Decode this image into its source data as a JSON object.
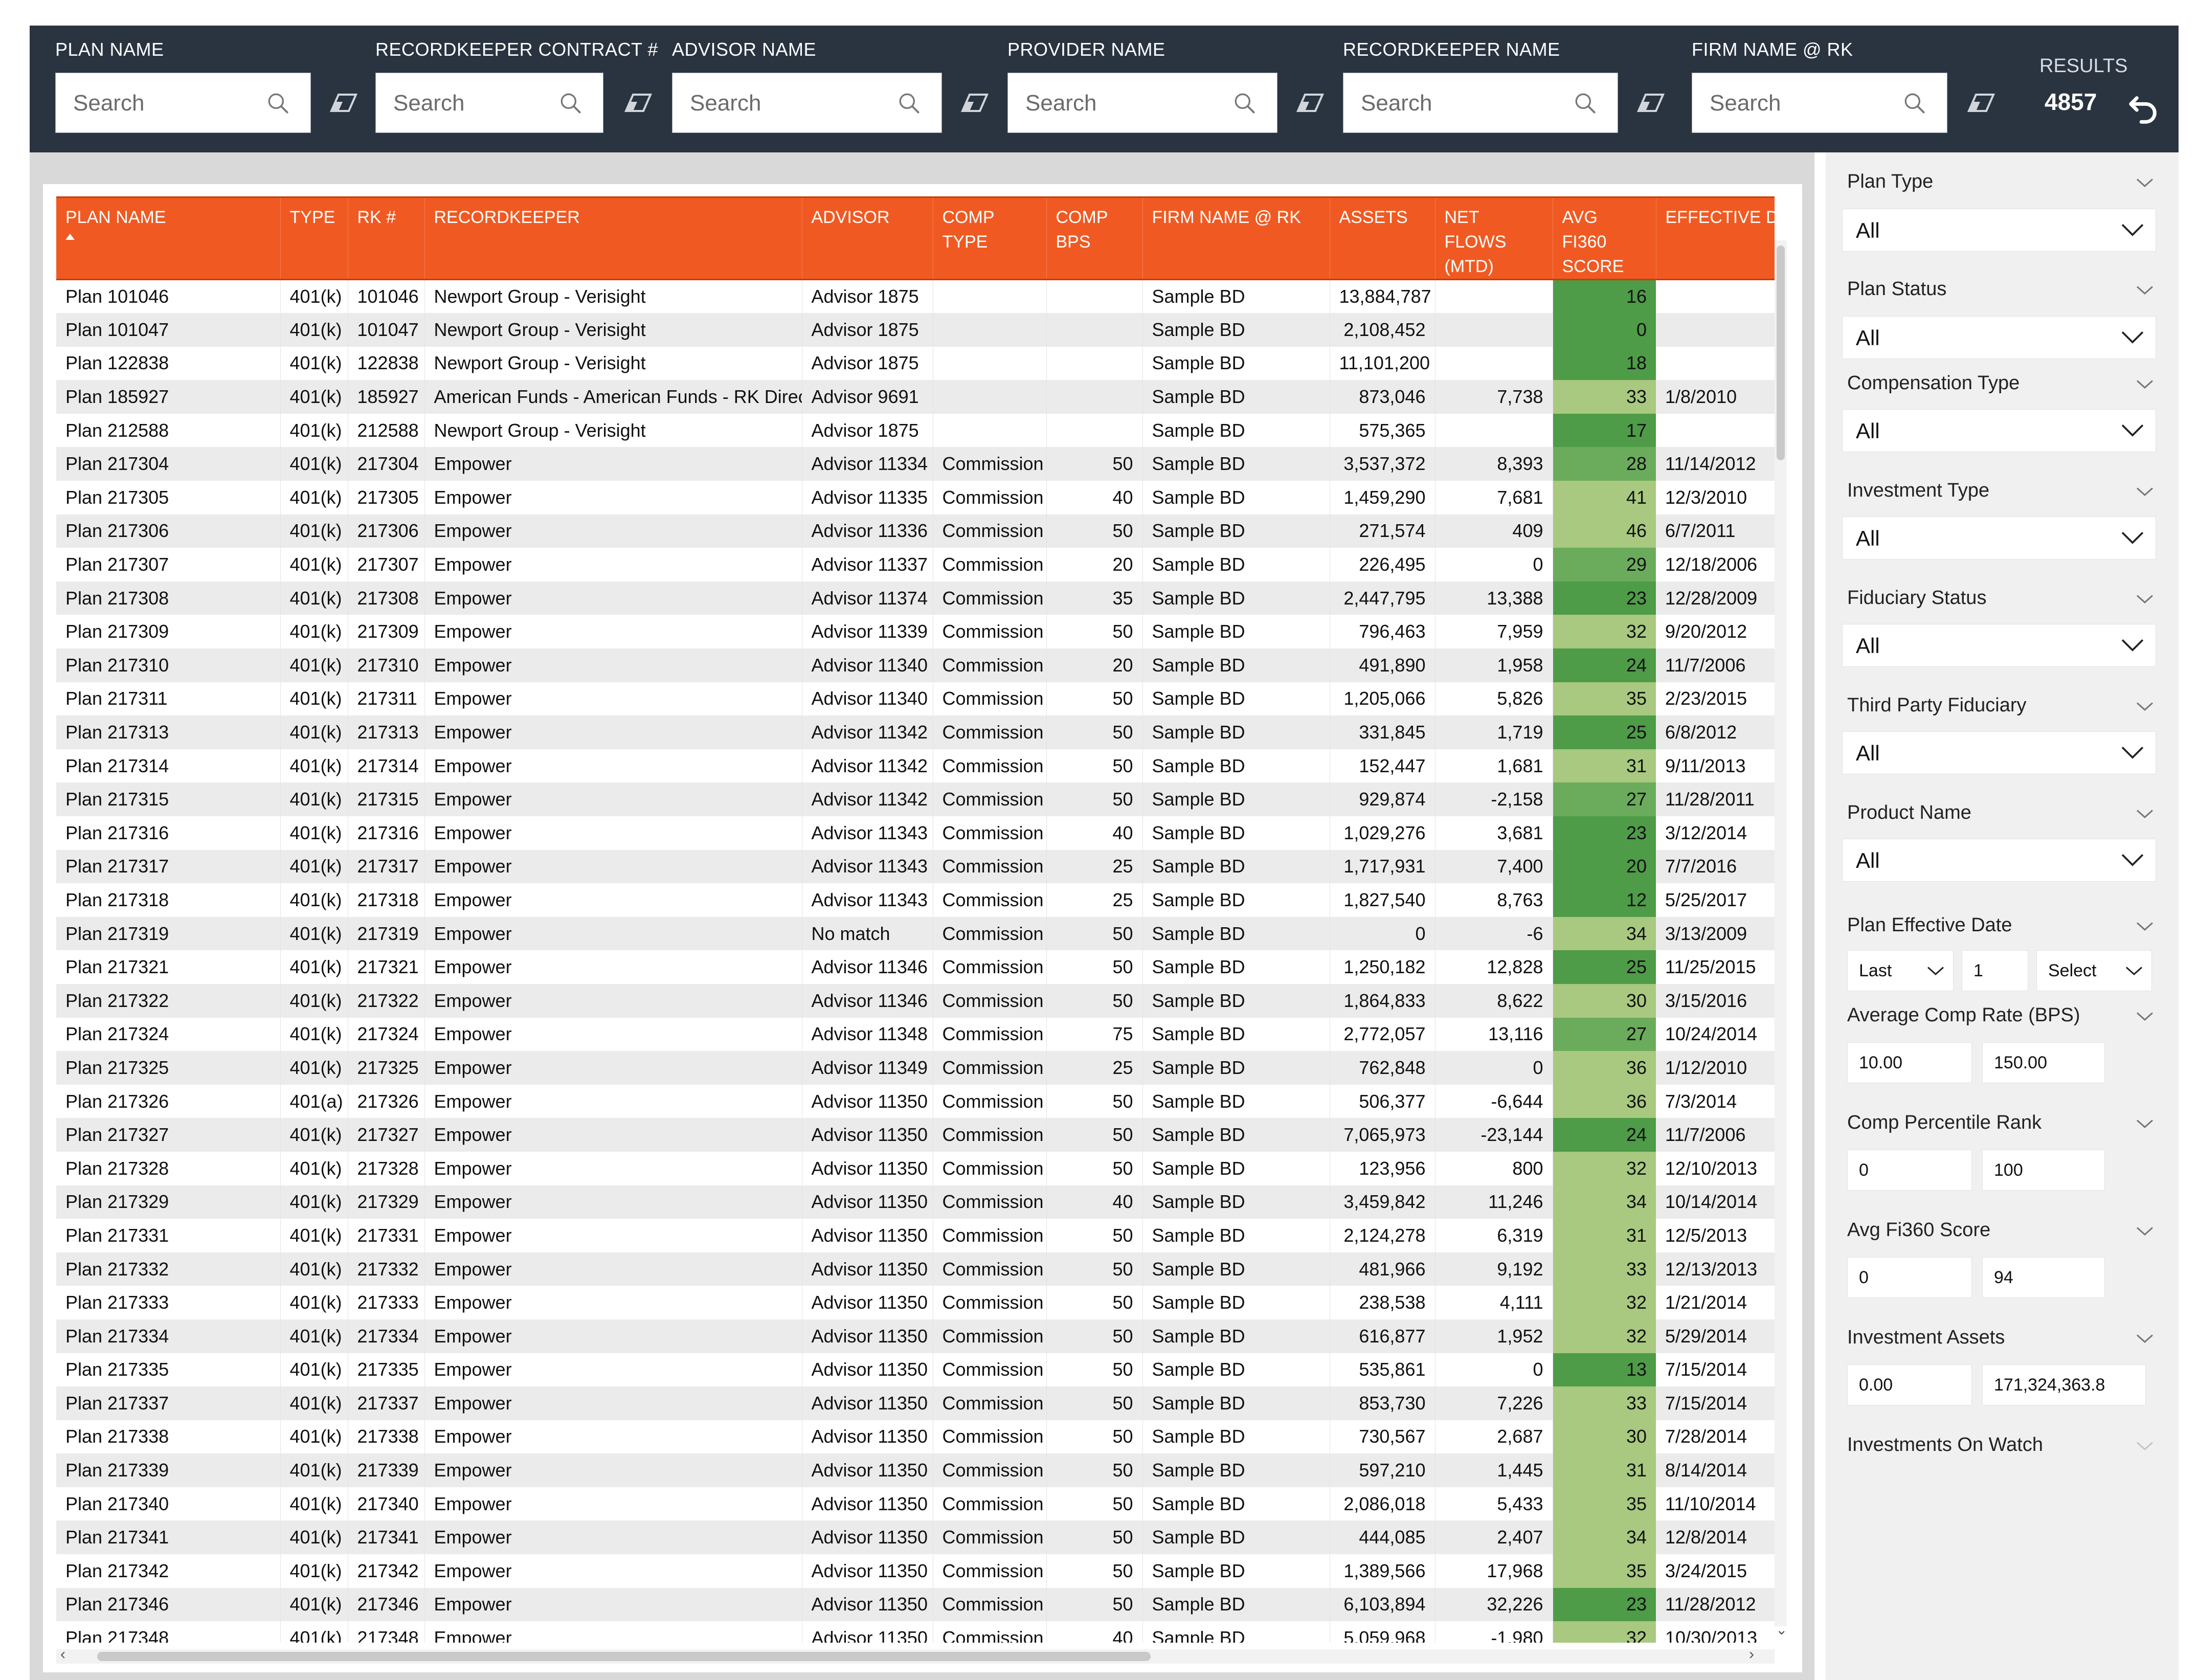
{
  "filters": [
    {
      "label": "PLAN NAME",
      "placeholder": "Search"
    },
    {
      "label": "RECORDKEEPER CONTRACT #",
      "placeholder": "Search"
    },
    {
      "label": "ADVISOR NAME",
      "placeholder": "Search"
    },
    {
      "label": "PROVIDER NAME",
      "placeholder": "Search"
    },
    {
      "label": "RECORDKEEPER NAME",
      "placeholder": "Search"
    },
    {
      "label": "FIRM NAME @ RK",
      "placeholder": "Search"
    }
  ],
  "results": {
    "label": "RESULTS",
    "value": "4857"
  },
  "table": {
    "columns": [
      {
        "label": "PLAN NAME"
      },
      {
        "label": "TYPE"
      },
      {
        "label": "RK #"
      },
      {
        "label": "RECORDKEEPER"
      },
      {
        "label": "ADVISOR"
      },
      {
        "label": "COMP TYPE"
      },
      {
        "label": "COMP BPS"
      },
      {
        "label": "FIRM NAME @ RK"
      },
      {
        "label": "ASSETS"
      },
      {
        "label": "NET FLOWS (MTD)"
      },
      {
        "label": "AVG FI360 SCORE"
      },
      {
        "label": "EFFECTIVE DATE"
      }
    ],
    "rows": [
      [
        "Plan 101046",
        "401(k)",
        "101046",
        "Newport Group - Verisight",
        "Advisor 1875",
        "",
        "",
        "Sample BD",
        "13,884,787",
        "",
        "16",
        ""
      ],
      [
        "Plan 101047",
        "401(k)",
        "101047",
        "Newport Group - Verisight",
        "Advisor 1875",
        "",
        "",
        "Sample BD",
        "2,108,452",
        "",
        "0",
        ""
      ],
      [
        "Plan 122838",
        "401(k)",
        "122838",
        "Newport Group - Verisight",
        "Advisor 1875",
        "",
        "",
        "Sample BD",
        "11,101,200",
        "",
        "18",
        ""
      ],
      [
        "Plan 185927",
        "401(k)",
        "185927",
        "American Funds - American Funds - RK Direct",
        "Advisor 9691",
        "",
        "",
        "Sample BD",
        "873,046",
        "7,738",
        "33",
        "1/8/2010"
      ],
      [
        "Plan 212588",
        "401(k)",
        "212588",
        "Newport Group - Verisight",
        "Advisor 1875",
        "",
        "",
        "Sample BD",
        "575,365",
        "",
        "17",
        ""
      ],
      [
        "Plan 217304",
        "401(k)",
        "217304",
        "Empower",
        "Advisor 11334",
        "Commission",
        "50",
        "Sample BD",
        "3,537,372",
        "8,393",
        "28",
        "11/14/2012"
      ],
      [
        "Plan 217305",
        "401(k)",
        "217305",
        "Empower",
        "Advisor 11335",
        "Commission",
        "40",
        "Sample BD",
        "1,459,290",
        "7,681",
        "41",
        "12/3/2010"
      ],
      [
        "Plan 217306",
        "401(k)",
        "217306",
        "Empower",
        "Advisor 11336",
        "Commission",
        "50",
        "Sample BD",
        "271,574",
        "409",
        "46",
        "6/7/2011"
      ],
      [
        "Plan 217307",
        "401(k)",
        "217307",
        "Empower",
        "Advisor 11337",
        "Commission",
        "20",
        "Sample BD",
        "226,495",
        "0",
        "29",
        "12/18/2006"
      ],
      [
        "Plan 217308",
        "401(k)",
        "217308",
        "Empower",
        "Advisor 11374",
        "Commission",
        "35",
        "Sample BD",
        "2,447,795",
        "13,388",
        "23",
        "12/28/2009"
      ],
      [
        "Plan 217309",
        "401(k)",
        "217309",
        "Empower",
        "Advisor 11339",
        "Commission",
        "50",
        "Sample BD",
        "796,463",
        "7,959",
        "32",
        "9/20/2012"
      ],
      [
        "Plan 217310",
        "401(k)",
        "217310",
        "Empower",
        "Advisor 11340",
        "Commission",
        "20",
        "Sample BD",
        "491,890",
        "1,958",
        "24",
        "11/7/2006"
      ],
      [
        "Plan 217311",
        "401(k)",
        "217311",
        "Empower",
        "Advisor 11340",
        "Commission",
        "50",
        "Sample BD",
        "1,205,066",
        "5,826",
        "35",
        "2/23/2015"
      ],
      [
        "Plan 217313",
        "401(k)",
        "217313",
        "Empower",
        "Advisor 11342",
        "Commission",
        "50",
        "Sample BD",
        "331,845",
        "1,719",
        "25",
        "6/8/2012"
      ],
      [
        "Plan 217314",
        "401(k)",
        "217314",
        "Empower",
        "Advisor 11342",
        "Commission",
        "50",
        "Sample BD",
        "152,447",
        "1,681",
        "31",
        "9/11/2013"
      ],
      [
        "Plan 217315",
        "401(k)",
        "217315",
        "Empower",
        "Advisor 11342",
        "Commission",
        "50",
        "Sample BD",
        "929,874",
        "-2,158",
        "27",
        "11/28/2011"
      ],
      [
        "Plan 217316",
        "401(k)",
        "217316",
        "Empower",
        "Advisor 11343",
        "Commission",
        "40",
        "Sample BD",
        "1,029,276",
        "3,681",
        "23",
        "3/12/2014"
      ],
      [
        "Plan 217317",
        "401(k)",
        "217317",
        "Empower",
        "Advisor 11343",
        "Commission",
        "25",
        "Sample BD",
        "1,717,931",
        "7,400",
        "20",
        "7/7/2016"
      ],
      [
        "Plan 217318",
        "401(k)",
        "217318",
        "Empower",
        "Advisor 11343",
        "Commission",
        "25",
        "Sample BD",
        "1,827,540",
        "8,763",
        "12",
        "5/25/2017"
      ],
      [
        "Plan 217319",
        "401(k)",
        "217319",
        "Empower",
        "No match",
        "Commission",
        "50",
        "Sample BD",
        "0",
        "-6",
        "34",
        "3/13/2009"
      ],
      [
        "Plan 217321",
        "401(k)",
        "217321",
        "Empower",
        "Advisor 11346",
        "Commission",
        "50",
        "Sample BD",
        "1,250,182",
        "12,828",
        "25",
        "11/25/2015"
      ],
      [
        "Plan 217322",
        "401(k)",
        "217322",
        "Empower",
        "Advisor 11346",
        "Commission",
        "50",
        "Sample BD",
        "1,864,833",
        "8,622",
        "30",
        "3/15/2016"
      ],
      [
        "Plan 217324",
        "401(k)",
        "217324",
        "Empower",
        "Advisor 11348",
        "Commission",
        "75",
        "Sample BD",
        "2,772,057",
        "13,116",
        "27",
        "10/24/2014"
      ],
      [
        "Plan 217325",
        "401(k)",
        "217325",
        "Empower",
        "Advisor 11349",
        "Commission",
        "25",
        "Sample BD",
        "762,848",
        "0",
        "36",
        "1/12/2010"
      ],
      [
        "Plan 217326",
        "401(a)",
        "217326",
        "Empower",
        "Advisor 11350",
        "Commission",
        "50",
        "Sample BD",
        "506,377",
        "-6,644",
        "36",
        "7/3/2014"
      ],
      [
        "Plan 217327",
        "401(k)",
        "217327",
        "Empower",
        "Advisor 11350",
        "Commission",
        "50",
        "Sample BD",
        "7,065,973",
        "-23,144",
        "24",
        "11/7/2006"
      ],
      [
        "Plan 217328",
        "401(k)",
        "217328",
        "Empower",
        "Advisor 11350",
        "Commission",
        "50",
        "Sample BD",
        "123,956",
        "800",
        "32",
        "12/10/2013"
      ],
      [
        "Plan 217329",
        "401(k)",
        "217329",
        "Empower",
        "Advisor 11350",
        "Commission",
        "40",
        "Sample BD",
        "3,459,842",
        "11,246",
        "34",
        "10/14/2014"
      ],
      [
        "Plan 217331",
        "401(k)",
        "217331",
        "Empower",
        "Advisor 11350",
        "Commission",
        "50",
        "Sample BD",
        "2,124,278",
        "6,319",
        "31",
        "12/5/2013"
      ],
      [
        "Plan 217332",
        "401(k)",
        "217332",
        "Empower",
        "Advisor 11350",
        "Commission",
        "50",
        "Sample BD",
        "481,966",
        "9,192",
        "33",
        "12/13/2013"
      ],
      [
        "Plan 217333",
        "401(k)",
        "217333",
        "Empower",
        "Advisor 11350",
        "Commission",
        "50",
        "Sample BD",
        "238,538",
        "4,111",
        "32",
        "1/21/2014"
      ],
      [
        "Plan 217334",
        "401(k)",
        "217334",
        "Empower",
        "Advisor 11350",
        "Commission",
        "50",
        "Sample BD",
        "616,877",
        "1,952",
        "32",
        "5/29/2014"
      ],
      [
        "Plan 217335",
        "401(k)",
        "217335",
        "Empower",
        "Advisor 11350",
        "Commission",
        "50",
        "Sample BD",
        "535,861",
        "0",
        "13",
        "7/15/2014"
      ],
      [
        "Plan 217337",
        "401(k)",
        "217337",
        "Empower",
        "Advisor 11350",
        "Commission",
        "50",
        "Sample BD",
        "853,730",
        "7,226",
        "33",
        "7/15/2014"
      ],
      [
        "Plan 217338",
        "401(k)",
        "217338",
        "Empower",
        "Advisor 11350",
        "Commission",
        "50",
        "Sample BD",
        "730,567",
        "2,687",
        "30",
        "7/28/2014"
      ],
      [
        "Plan 217339",
        "401(k)",
        "217339",
        "Empower",
        "Advisor 11350",
        "Commission",
        "50",
        "Sample BD",
        "597,210",
        "1,445",
        "31",
        "8/14/2014"
      ],
      [
        "Plan 217340",
        "401(k)",
        "217340",
        "Empower",
        "Advisor 11350",
        "Commission",
        "50",
        "Sample BD",
        "2,086,018",
        "5,433",
        "35",
        "11/10/2014"
      ],
      [
        "Plan 217341",
        "401(k)",
        "217341",
        "Empower",
        "Advisor 11350",
        "Commission",
        "50",
        "Sample BD",
        "444,085",
        "2,407",
        "34",
        "12/8/2014"
      ],
      [
        "Plan 217342",
        "401(k)",
        "217342",
        "Empower",
        "Advisor 11350",
        "Commission",
        "50",
        "Sample BD",
        "1,389,566",
        "17,968",
        "35",
        "3/24/2015"
      ],
      [
        "Plan 217346",
        "401(k)",
        "217346",
        "Empower",
        "Advisor 11350",
        "Commission",
        "50",
        "Sample BD",
        "6,103,894",
        "32,226",
        "23",
        "11/28/2012"
      ],
      [
        "Plan 217348",
        "401(k)",
        "217348",
        "Empower",
        "Advisor 11350",
        "Commission",
        "40",
        "Sample BD",
        "5,059,968",
        "-1,980",
        "32",
        "10/30/2013"
      ]
    ],
    "score_colors": {
      "dark": "#4e9b48",
      "mid": "#6aac5b",
      "light": "#a8c97f"
    }
  },
  "sidebar": {
    "plan_type": {
      "label": "Plan Type",
      "value": "All"
    },
    "plan_status": {
      "label": "Plan Status",
      "value": "All"
    },
    "compensation_type": {
      "label": "Compensation Type",
      "value": "All"
    },
    "investment_type": {
      "label": "Investment Type",
      "value": "All"
    },
    "fiduciary_status": {
      "label": "Fiduciary Status",
      "value": "All"
    },
    "third_party_fiduciary": {
      "label": "Third Party Fiduciary",
      "value": "All"
    },
    "product_name": {
      "label": "Product Name",
      "value": "All"
    },
    "plan_effective_date": {
      "label": "Plan Effective Date",
      "period": "Last",
      "amount": "1",
      "unit": "Select"
    },
    "average_comp_rate": {
      "label": "Average Comp Rate (BPS)",
      "min": "10.00",
      "max": "150.00"
    },
    "comp_percentile_rank": {
      "label": "Comp Percentile Rank",
      "min": "0",
      "max": "100"
    },
    "avg_fi360_score": {
      "label": "Avg Fi360 Score",
      "min": "0",
      "max": "94"
    },
    "investment_assets": {
      "label": "Investment Assets",
      "min": "0.00",
      "max": "171,324,363.8"
    },
    "investments_on_watch": {
      "label": "Investments On Watch"
    }
  },
  "theme": {
    "topbar": "#2a3340",
    "header": "#f05a22",
    "panel": "#f0f0f0"
  }
}
